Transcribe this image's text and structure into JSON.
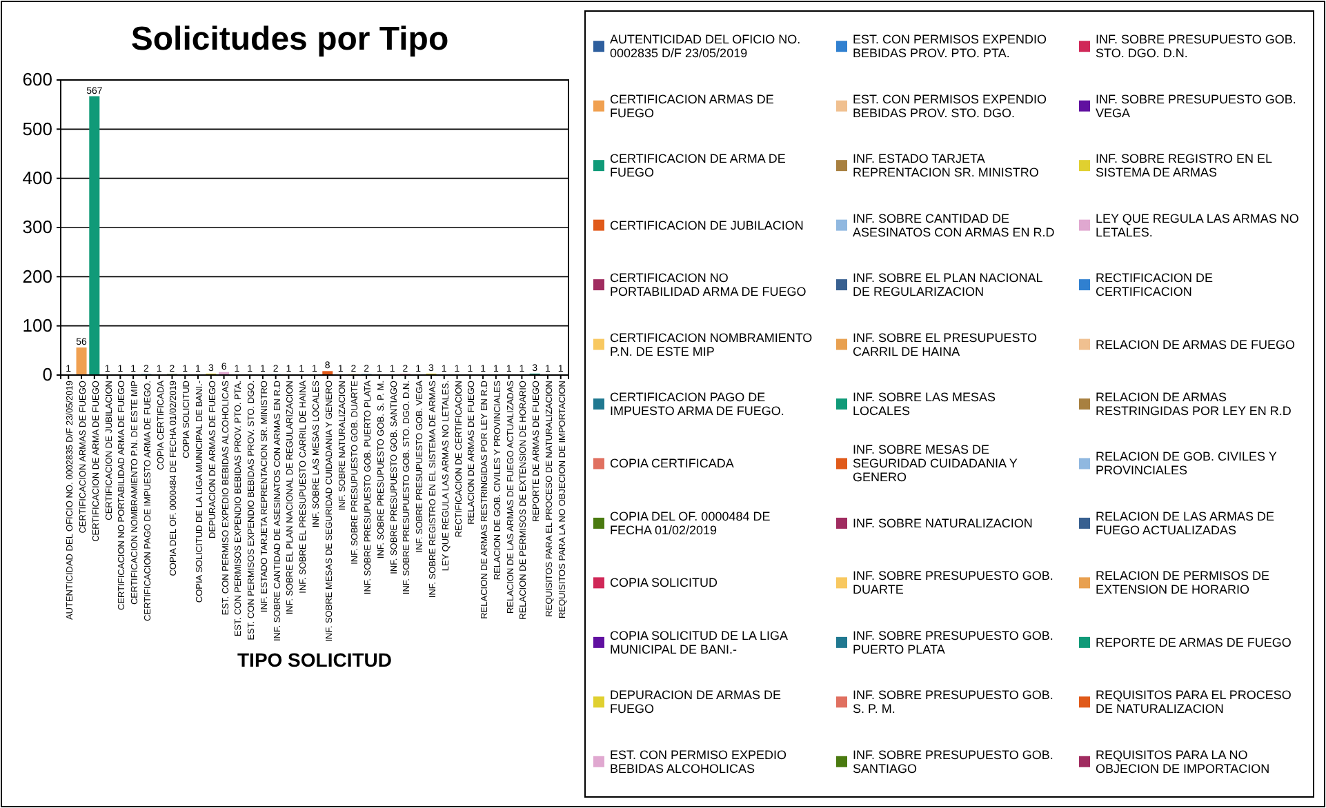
{
  "chart_data": {
    "type": "bar",
    "title": "Solicitudes por Tipo",
    "xlabel": "TIPO SOLICITUD",
    "categories": [
      "AUTENTICIDAD DEL OFICIO NO. 0002835 D/F 23/05/2019",
      "CERTIFICACION ARMAS DE FUEGO",
      "CERTIFICACION DE ARMA DE FUEGO",
      "CERTIFICACION DE JUBILACION",
      "CERTIFICACION NO PORTABILIDAD ARMA DE FUEGO",
      "CERTIFICACION NOMBRAMIENTO P.N. DE ESTE MIP",
      "CERTIFICACION PAGO DE IMPUESTO ARMA DE FUEGO.",
      "COPIA CERTIFICADA",
      "COPIA DEL OF. 0000484 DE FECHA 01/02/2019",
      "COPIA SOLICITUD",
      "COPIA SOLICITUD DE LA LIGA MUNICIPAL DE BANI.-",
      "DEPURACION DE ARMAS DE FUEGO",
      "EST. CON PERMISO EXPEDIO BEBIDAS ALCOHOLICAS",
      "EST. CON PERMISOS EXPENDIO BEBIDAS PROV. PTO. PTA.",
      "EST. CON PERMISOS EXPENDIO BEBIDAS PROV. STO. DGO.",
      "INF. ESTADO TARJETA REPRENTACION SR. MINISTRO",
      "INF. SOBRE CANTIDAD DE ASESINATOS CON ARMAS EN R.D",
      "INF. SOBRE EL PLAN NACIONAL DE REGULARIZACION",
      "INF. SOBRE EL PRESUPUESTO CARRIL DE HAINA",
      "INF. SOBRE LAS MESAS LOCALES",
      "INF. SOBRE MESAS DE SEGURIDAD CUIDADANIA Y GENERO",
      "INF. SOBRE NATURALIZACION",
      "INF. SOBRE PRESUPUESTO GOB. DUARTE",
      "INF. SOBRE PRESUPUESTO GOB. PUERTO PLATA",
      "INF. SOBRE PRESUPUESTO GOB. S. P. M.",
      "INF. SOBRE PRESUPUESTO GOB. SANTIAGO",
      "INF. SOBRE PRESUPUESTO GOB. STO. DGO. D.N.",
      "INF. SOBRE PRESUPUESTO GOB. VEGA",
      "INF. SOBRE REGISTRO EN EL SISTEMA DE ARMAS",
      "LEY QUE REGULA LAS ARMAS NO LETALES.",
      "RECTIFICACION DE CERTIFICACION",
      "RELACION DE ARMAS DE FUEGO",
      "RELACION DE ARMAS RESTRINGIDAS POR LEY EN R.D",
      "RELACION DE GOB. CIVILES Y PROVINCIALES",
      "RELACION DE LAS ARMAS DE FUEGO ACTUALIZADAS",
      "RELACION DE PERMISOS DE EXTENSION DE HORARIO",
      "REPORTE DE ARMAS DE FUEGO",
      "REQUISITOS PARA EL PROCESO DE NATURALIZACION",
      "REQUISITOS PARA LA NO OBJECION DE IMPORTACION"
    ],
    "series": [
      {
        "name": "AUTENTICIDAD DEL OFICIO NO. 0002835 D/F 23/05/2019",
        "color": "#2e5f9e",
        "values": [
          1,
          null,
          null,
          null,
          null,
          null,
          null,
          null,
          null,
          null,
          null,
          null,
          null,
          null,
          null,
          null,
          null,
          null,
          null,
          null,
          null,
          null,
          null,
          null,
          null,
          null,
          null,
          null,
          null,
          null,
          null,
          null,
          null,
          null,
          null,
          null,
          null,
          null,
          null
        ]
      },
      {
        "name": "CERTIFICACION ARMAS DE FUEGO",
        "color": "#f0a050",
        "values": [
          null,
          56,
          null,
          null,
          null,
          null,
          null,
          null,
          null,
          null,
          null,
          null,
          null,
          null,
          null,
          null,
          null,
          null,
          null,
          null,
          null,
          null,
          null,
          null,
          null,
          null,
          null,
          null,
          null,
          null,
          null,
          null,
          null,
          null,
          null,
          null,
          null,
          null,
          null
        ]
      },
      {
        "name": "CERTIFICACION DE ARMA DE FUEGO",
        "color": "#109a78",
        "values": [
          null,
          null,
          567,
          null,
          null,
          null,
          null,
          null,
          null,
          null,
          null,
          null,
          null,
          null,
          null,
          null,
          null,
          null,
          null,
          null,
          null,
          null,
          null,
          null,
          null,
          null,
          null,
          null,
          null,
          null,
          null,
          null,
          null,
          null,
          null,
          null,
          null,
          null,
          null
        ]
      },
      {
        "name": "CERTIFICACION DE JUBILACION",
        "color": "#e05a1a",
        "values": [
          null,
          null,
          null,
          1,
          null,
          null,
          null,
          null,
          null,
          null,
          null,
          null,
          null,
          null,
          null,
          null,
          null,
          null,
          null,
          null,
          null,
          null,
          null,
          null,
          null,
          null,
          null,
          null,
          null,
          null,
          null,
          null,
          null,
          null,
          null,
          null,
          null,
          null,
          null
        ]
      },
      {
        "name": "CERTIFICACION NO PORTABILIDAD ARMA DE FUEGO",
        "color": "#a02c60",
        "values": [
          null,
          null,
          null,
          null,
          1,
          null,
          null,
          null,
          null,
          null,
          null,
          null,
          null,
          null,
          null,
          null,
          null,
          null,
          null,
          null,
          null,
          null,
          null,
          null,
          null,
          null,
          null,
          null,
          null,
          null,
          null,
          null,
          null,
          null,
          null,
          null,
          null,
          null,
          null
        ]
      },
      {
        "name": "CERTIFICACION NOMBRAMIENTO P.N. DE ESTE MIP",
        "color": "#f8c860",
        "values": [
          null,
          null,
          null,
          null,
          null,
          1,
          null,
          null,
          null,
          null,
          null,
          null,
          null,
          null,
          null,
          null,
          null,
          null,
          null,
          null,
          null,
          null,
          null,
          null,
          null,
          null,
          null,
          null,
          null,
          null,
          null,
          null,
          null,
          null,
          null,
          null,
          null,
          null,
          null
        ]
      },
      {
        "name": "CERTIFICACION PAGO DE IMPUESTO ARMA DE FUEGO.",
        "color": "#207890",
        "values": [
          null,
          null,
          null,
          null,
          null,
          null,
          2,
          null,
          null,
          null,
          null,
          null,
          null,
          null,
          null,
          null,
          null,
          null,
          null,
          null,
          null,
          null,
          null,
          null,
          null,
          null,
          null,
          null,
          null,
          null,
          null,
          null,
          null,
          null,
          null,
          null,
          null,
          null,
          null
        ]
      },
      {
        "name": "COPIA CERTIFICADA",
        "color": "#e07060",
        "values": [
          null,
          null,
          null,
          null,
          null,
          null,
          null,
          1,
          null,
          null,
          null,
          null,
          null,
          null,
          null,
          null,
          null,
          null,
          null,
          null,
          null,
          null,
          null,
          null,
          null,
          null,
          null,
          null,
          null,
          null,
          null,
          null,
          null,
          null,
          null,
          null,
          null,
          null,
          null
        ]
      },
      {
        "name": "COPIA DEL OF. 0000484 DE FECHA 01/02/2019",
        "color": "#4a7a10",
        "values": [
          null,
          null,
          null,
          null,
          null,
          null,
          null,
          null,
          2,
          null,
          null,
          null,
          null,
          null,
          null,
          null,
          null,
          null,
          null,
          null,
          null,
          null,
          null,
          null,
          null,
          null,
          null,
          null,
          null,
          null,
          null,
          null,
          null,
          null,
          null,
          null,
          null,
          null,
          null
        ]
      },
      {
        "name": "COPIA SOLICITUD",
        "color": "#d02858",
        "values": [
          null,
          null,
          null,
          null,
          null,
          null,
          null,
          null,
          null,
          1,
          null,
          null,
          null,
          null,
          null,
          null,
          null,
          null,
          null,
          null,
          null,
          null,
          null,
          null,
          null,
          null,
          null,
          null,
          null,
          null,
          null,
          null,
          null,
          null,
          null,
          null,
          null,
          null,
          null
        ]
      },
      {
        "name": "COPIA SOLICITUD DE LA LIGA MUNICIPAL DE BANI.-",
        "color": "#6010a0",
        "values": [
          null,
          null,
          null,
          null,
          null,
          null,
          null,
          null,
          null,
          null,
          1,
          null,
          null,
          null,
          null,
          null,
          null,
          null,
          null,
          null,
          null,
          null,
          null,
          null,
          null,
          null,
          null,
          null,
          null,
          null,
          null,
          null,
          null,
          null,
          null,
          null,
          null,
          null,
          null
        ]
      },
      {
        "name": "DEPURACION DE ARMAS DE FUEGO",
        "color": "#e0d030",
        "values": [
          null,
          null,
          null,
          null,
          null,
          null,
          null,
          null,
          null,
          null,
          null,
          3,
          null,
          null,
          null,
          null,
          null,
          null,
          null,
          null,
          null,
          null,
          null,
          null,
          null,
          null,
          null,
          null,
          null,
          null,
          null,
          null,
          null,
          null,
          null,
          null,
          null,
          null,
          null
        ]
      },
      {
        "name": "EST. CON PERMISO EXPEDIO BEBIDAS ALCOHOLICAS",
        "color": "#e0a8d0",
        "values": [
          null,
          null,
          null,
          null,
          null,
          null,
          null,
          null,
          null,
          null,
          null,
          null,
          6,
          null,
          null,
          null,
          null,
          null,
          null,
          null,
          null,
          null,
          null,
          null,
          null,
          null,
          null,
          null,
          null,
          null,
          null,
          null,
          null,
          null,
          null,
          null,
          null,
          null,
          null
        ]
      },
      {
        "name": "EST. CON PERMISOS EXPENDIO BEBIDAS PROV. PTO. PTA.",
        "color": "#3080d0",
        "values": [
          null,
          null,
          null,
          null,
          null,
          null,
          null,
          null,
          null,
          null,
          null,
          null,
          null,
          1,
          null,
          null,
          null,
          null,
          null,
          null,
          null,
          null,
          null,
          null,
          null,
          null,
          null,
          null,
          null,
          null,
          null,
          null,
          null,
          null,
          null,
          null,
          null,
          null,
          null
        ]
      },
      {
        "name": "EST. CON PERMISOS EXPENDIO BEBIDAS PROV. STO. DGO.",
        "color": "#f0c090",
        "values": [
          null,
          null,
          null,
          null,
          null,
          null,
          null,
          null,
          null,
          null,
          null,
          null,
          null,
          null,
          1,
          null,
          null,
          null,
          null,
          null,
          null,
          null,
          null,
          null,
          null,
          null,
          null,
          null,
          null,
          null,
          null,
          null,
          null,
          null,
          null,
          null,
          null,
          null,
          null
        ]
      },
      {
        "name": "INF. ESTADO TARJETA REPRENTACION SR. MINISTRO",
        "color": "#a88040",
        "values": [
          null,
          null,
          null,
          null,
          null,
          null,
          null,
          null,
          null,
          null,
          null,
          null,
          null,
          null,
          null,
          1,
          null,
          null,
          null,
          null,
          null,
          null,
          null,
          null,
          null,
          null,
          null,
          null,
          null,
          null,
          null,
          null,
          null,
          null,
          null,
          null,
          null,
          null,
          null
        ]
      },
      {
        "name": "INF. SOBRE CANTIDAD DE ASESINATOS CON ARMAS EN R.D",
        "color": "#90b8e0",
        "values": [
          null,
          null,
          null,
          null,
          null,
          null,
          null,
          null,
          null,
          null,
          null,
          null,
          null,
          null,
          null,
          null,
          2,
          null,
          null,
          null,
          null,
          null,
          null,
          null,
          null,
          null,
          null,
          null,
          null,
          null,
          null,
          null,
          null,
          null,
          null,
          null,
          null,
          null,
          null
        ]
      },
      {
        "name": "INF. SOBRE EL PLAN NACIONAL DE REGULARIZACION",
        "color": "#386090",
        "values": [
          null,
          null,
          null,
          null,
          null,
          null,
          null,
          null,
          null,
          null,
          null,
          null,
          null,
          null,
          null,
          null,
          null,
          1,
          null,
          null,
          null,
          null,
          null,
          null,
          null,
          null,
          null,
          null,
          null,
          null,
          null,
          null,
          null,
          null,
          null,
          null,
          null,
          null,
          null
        ]
      },
      {
        "name": "INF. SOBRE EL PRESUPUESTO CARRIL DE HAINA",
        "color": "#e8a050",
        "values": [
          null,
          null,
          null,
          null,
          null,
          null,
          null,
          null,
          null,
          null,
          null,
          null,
          null,
          null,
          null,
          null,
          null,
          null,
          1,
          null,
          null,
          null,
          null,
          null,
          null,
          null,
          null,
          null,
          null,
          null,
          null,
          null,
          null,
          null,
          null,
          null,
          null,
          null,
          null
        ]
      },
      {
        "name": "INF. SOBRE LAS MESAS LOCALES",
        "color": "#109a78",
        "values": [
          null,
          null,
          null,
          null,
          null,
          null,
          null,
          null,
          null,
          null,
          null,
          null,
          null,
          null,
          null,
          null,
          null,
          null,
          null,
          1,
          null,
          null,
          null,
          null,
          null,
          null,
          null,
          null,
          null,
          null,
          null,
          null,
          null,
          null,
          null,
          null,
          null,
          null,
          null
        ]
      },
      {
        "name": "INF. SOBRE MESAS DE SEGURIDAD CUIDADANIA Y GENERO",
        "color": "#e05a1a",
        "values": [
          null,
          null,
          null,
          null,
          null,
          null,
          null,
          null,
          null,
          null,
          null,
          null,
          null,
          null,
          null,
          null,
          null,
          null,
          null,
          null,
          8,
          null,
          null,
          null,
          null,
          null,
          null,
          null,
          null,
          null,
          null,
          null,
          null,
          null,
          null,
          null,
          null,
          null,
          null
        ]
      },
      {
        "name": "INF. SOBRE NATURALIZACION",
        "color": "#a02c60",
        "values": [
          null,
          null,
          null,
          null,
          null,
          null,
          null,
          null,
          null,
          null,
          null,
          null,
          null,
          null,
          null,
          null,
          null,
          null,
          null,
          null,
          null,
          1,
          null,
          null,
          null,
          null,
          null,
          null,
          null,
          null,
          null,
          null,
          null,
          null,
          null,
          null,
          null,
          null,
          null
        ]
      },
      {
        "name": "INF. SOBRE PRESUPUESTO GOB. DUARTE",
        "color": "#f8c860",
        "values": [
          null,
          null,
          null,
          null,
          null,
          null,
          null,
          null,
          null,
          null,
          null,
          null,
          null,
          null,
          null,
          null,
          null,
          null,
          null,
          null,
          null,
          null,
          2,
          null,
          null,
          null,
          null,
          null,
          null,
          null,
          null,
          null,
          null,
          null,
          null,
          null,
          null,
          null,
          null
        ]
      },
      {
        "name": "INF. SOBRE PRESUPUESTO GOB. PUERTO PLATA",
        "color": "#207890",
        "values": [
          null,
          null,
          null,
          null,
          null,
          null,
          null,
          null,
          null,
          null,
          null,
          null,
          null,
          null,
          null,
          null,
          null,
          null,
          null,
          null,
          null,
          null,
          null,
          2,
          null,
          null,
          null,
          null,
          null,
          null,
          null,
          null,
          null,
          null,
          null,
          null,
          null,
          null,
          null
        ]
      },
      {
        "name": "INF. SOBRE PRESUPUESTO GOB. S. P. M.",
        "color": "#e07060",
        "values": [
          null,
          null,
          null,
          null,
          null,
          null,
          null,
          null,
          null,
          null,
          null,
          null,
          null,
          null,
          null,
          null,
          null,
          null,
          null,
          null,
          null,
          null,
          null,
          null,
          1,
          null,
          null,
          null,
          null,
          null,
          null,
          null,
          null,
          null,
          null,
          null,
          null,
          null,
          null
        ]
      },
      {
        "name": "INF. SOBRE PRESUPUESTO GOB. SANTIAGO",
        "color": "#4a7a10",
        "values": [
          null,
          null,
          null,
          null,
          null,
          null,
          null,
          null,
          null,
          null,
          null,
          null,
          null,
          null,
          null,
          null,
          null,
          null,
          null,
          null,
          null,
          null,
          null,
          null,
          null,
          1,
          null,
          null,
          null,
          null,
          null,
          null,
          null,
          null,
          null,
          null,
          null,
          null,
          null
        ]
      },
      {
        "name": "INF. SOBRE PRESUPUESTO GOB. STO. DGO. D.N.",
        "color": "#d02858",
        "values": [
          null,
          null,
          null,
          null,
          null,
          null,
          null,
          null,
          null,
          null,
          null,
          null,
          null,
          null,
          null,
          null,
          null,
          null,
          null,
          null,
          null,
          null,
          null,
          null,
          null,
          null,
          2,
          null,
          null,
          null,
          null,
          null,
          null,
          null,
          null,
          null,
          null,
          null,
          null
        ]
      },
      {
        "name": "INF. SOBRE PRESUPUESTO GOB. VEGA",
        "color": "#6010a0",
        "values": [
          null,
          null,
          null,
          null,
          null,
          null,
          null,
          null,
          null,
          null,
          null,
          null,
          null,
          null,
          null,
          null,
          null,
          null,
          null,
          null,
          null,
          null,
          null,
          null,
          null,
          null,
          null,
          1,
          null,
          null,
          null,
          null,
          null,
          null,
          null,
          null,
          null,
          null,
          null
        ]
      },
      {
        "name": "INF. SOBRE REGISTRO EN EL SISTEMA DE ARMAS",
        "color": "#e0d030",
        "values": [
          null,
          null,
          null,
          null,
          null,
          null,
          null,
          null,
          null,
          null,
          null,
          null,
          null,
          null,
          null,
          null,
          null,
          null,
          null,
          null,
          null,
          null,
          null,
          null,
          null,
          null,
          null,
          null,
          3,
          null,
          null,
          null,
          null,
          null,
          null,
          null,
          null,
          null,
          null
        ]
      },
      {
        "name": "LEY QUE REGULA LAS ARMAS NO LETALES.",
        "color": "#e0a8d0",
        "values": [
          null,
          null,
          null,
          null,
          null,
          null,
          null,
          null,
          null,
          null,
          null,
          null,
          null,
          null,
          null,
          null,
          null,
          null,
          null,
          null,
          null,
          null,
          null,
          null,
          null,
          null,
          null,
          null,
          null,
          1,
          null,
          null,
          null,
          null,
          null,
          null,
          null,
          null,
          null
        ]
      },
      {
        "name": "RECTIFICACION DE CERTIFICACION",
        "color": "#3080d0",
        "values": [
          null,
          null,
          null,
          null,
          null,
          null,
          null,
          null,
          null,
          null,
          null,
          null,
          null,
          null,
          null,
          null,
          null,
          null,
          null,
          null,
          null,
          null,
          null,
          null,
          null,
          null,
          null,
          null,
          null,
          null,
          1,
          null,
          null,
          null,
          null,
          null,
          null,
          null,
          null
        ]
      },
      {
        "name": "RELACION DE ARMAS DE FUEGO",
        "color": "#f0c090",
        "values": [
          null,
          null,
          null,
          null,
          null,
          null,
          null,
          null,
          null,
          null,
          null,
          null,
          null,
          null,
          null,
          null,
          null,
          null,
          null,
          null,
          null,
          null,
          null,
          null,
          null,
          null,
          null,
          null,
          null,
          null,
          null,
          1,
          null,
          null,
          null,
          null,
          null,
          null,
          null
        ]
      },
      {
        "name": "RELACION DE ARMAS RESTRINGIDAS POR LEY EN R.D",
        "color": "#a88040",
        "values": [
          null,
          null,
          null,
          null,
          null,
          null,
          null,
          null,
          null,
          null,
          null,
          null,
          null,
          null,
          null,
          null,
          null,
          null,
          null,
          null,
          null,
          null,
          null,
          null,
          null,
          null,
          null,
          null,
          null,
          null,
          null,
          null,
          1,
          null,
          null,
          null,
          null,
          null,
          null
        ]
      },
      {
        "name": "RELACION DE GOB. CIVILES Y PROVINCIALES",
        "color": "#90b8e0",
        "values": [
          null,
          null,
          null,
          null,
          null,
          null,
          null,
          null,
          null,
          null,
          null,
          null,
          null,
          null,
          null,
          null,
          null,
          null,
          null,
          null,
          null,
          null,
          null,
          null,
          null,
          null,
          null,
          null,
          null,
          null,
          null,
          null,
          null,
          1,
          null,
          null,
          null,
          null,
          null
        ]
      },
      {
        "name": "RELACION DE LAS ARMAS DE FUEGO ACTUALIZADAS",
        "color": "#386090",
        "values": [
          null,
          null,
          null,
          null,
          null,
          null,
          null,
          null,
          null,
          null,
          null,
          null,
          null,
          null,
          null,
          null,
          null,
          null,
          null,
          null,
          null,
          null,
          null,
          null,
          null,
          null,
          null,
          null,
          null,
          null,
          null,
          null,
          null,
          null,
          1,
          null,
          null,
          null,
          null
        ]
      },
      {
        "name": "RELACION DE PERMISOS DE EXTENSION DE HORARIO",
        "color": "#e8a050",
        "values": [
          null,
          null,
          null,
          null,
          null,
          null,
          null,
          null,
          null,
          null,
          null,
          null,
          null,
          null,
          null,
          null,
          null,
          null,
          null,
          null,
          null,
          null,
          null,
          null,
          null,
          null,
          null,
          null,
          null,
          null,
          null,
          null,
          null,
          null,
          null,
          1,
          null,
          null,
          null
        ]
      },
      {
        "name": "REPORTE DE ARMAS DE FUEGO",
        "color": "#109a78",
        "values": [
          null,
          null,
          null,
          null,
          null,
          null,
          null,
          null,
          null,
          null,
          null,
          null,
          null,
          null,
          null,
          null,
          null,
          null,
          null,
          null,
          null,
          null,
          null,
          null,
          null,
          null,
          null,
          null,
          null,
          null,
          null,
          null,
          null,
          null,
          null,
          null,
          3,
          null,
          null
        ]
      },
      {
        "name": "REQUISITOS PARA EL PROCESO DE NATURALIZACION",
        "color": "#e05a1a",
        "values": [
          null,
          null,
          null,
          null,
          null,
          null,
          null,
          null,
          null,
          null,
          null,
          null,
          null,
          null,
          null,
          null,
          null,
          null,
          null,
          null,
          null,
          null,
          null,
          null,
          null,
          null,
          null,
          null,
          null,
          null,
          null,
          null,
          null,
          null,
          null,
          null,
          null,
          1,
          null
        ]
      },
      {
        "name": "REQUISITOS PARA LA NO OBJECION DE IMPORTACION",
        "color": "#a02c60",
        "values": [
          null,
          null,
          null,
          null,
          null,
          null,
          null,
          null,
          null,
          null,
          null,
          null,
          null,
          null,
          null,
          null,
          null,
          null,
          null,
          null,
          null,
          null,
          null,
          null,
          null,
          null,
          null,
          null,
          null,
          null,
          null,
          null,
          null,
          null,
          null,
          null,
          null,
          null,
          1
        ]
      }
    ],
    "ylim": [
      0,
      600
    ],
    "yticks": [
      0,
      100,
      200,
      300,
      400,
      500,
      600
    ],
    "grid": "y",
    "data_labels": true,
    "legend": "right"
  }
}
